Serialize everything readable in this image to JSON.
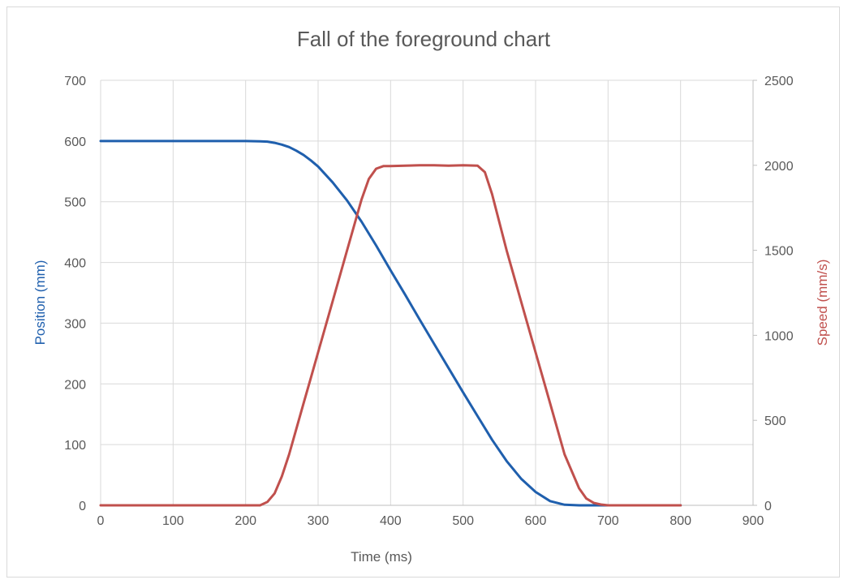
{
  "chart_data": {
    "type": "line",
    "title": "Fall of the foreground chart",
    "xlabel": "Time (ms)",
    "ylabel": "Position (mm)",
    "y2label": "Speed (mm/s)",
    "xlim": [
      0,
      900
    ],
    "ylim": [
      0,
      700
    ],
    "y2lim": [
      0,
      2500
    ],
    "xticks": [
      "0",
      "100",
      "200",
      "300",
      "400",
      "500",
      "600",
      "700",
      "800",
      "900"
    ],
    "yticks": [
      "0",
      "100",
      "200",
      "300",
      "400",
      "500",
      "600",
      "700"
    ],
    "y2ticks": [
      "0",
      "500",
      "1000",
      "1500",
      "2000",
      "2500"
    ],
    "grid": true,
    "colors": {
      "position": "#1f5fad",
      "speed": "#c0504d",
      "position_label": "#1f5fad",
      "speed_label": "#c0504d"
    },
    "series": [
      {
        "key": "position",
        "axis": "left",
        "x": [
          0,
          50,
          100,
          150,
          200,
          220,
          230,
          240,
          250,
          260,
          270,
          280,
          290,
          300,
          320,
          340,
          360,
          380,
          400,
          420,
          440,
          460,
          480,
          500,
          520,
          540,
          560,
          580,
          600,
          620,
          640,
          660,
          680,
          700,
          750,
          800
        ],
        "values": [
          600,
          600,
          600,
          600,
          600,
          599.5,
          599,
          597,
          594,
          590,
          584,
          577,
          568,
          558,
          532,
          502,
          467,
          428,
          387,
          347,
          306,
          266,
          226,
          186,
          147,
          108,
          73,
          44,
          22,
          7,
          1,
          0,
          0,
          0,
          0,
          0
        ]
      },
      {
        "key": "speed",
        "axis": "right",
        "x": [
          0,
          50,
          100,
          150,
          200,
          220,
          230,
          240,
          250,
          260,
          270,
          280,
          290,
          300,
          320,
          340,
          360,
          370,
          380,
          390,
          400,
          420,
          440,
          460,
          480,
          500,
          520,
          530,
          540,
          560,
          580,
          600,
          620,
          640,
          660,
          670,
          680,
          690,
          700,
          750,
          800
        ],
        "values": [
          0,
          0,
          0,
          0,
          0,
          0,
          20,
          70,
          170,
          300,
          450,
          600,
          750,
          900,
          1200,
          1500,
          1800,
          1920,
          1980,
          1995,
          1995,
          1998,
          2000,
          2000,
          1998,
          2000,
          1998,
          1960,
          1830,
          1500,
          1200,
          900,
          600,
          300,
          100,
          40,
          15,
          5,
          0,
          0,
          0
        ]
      }
    ]
  }
}
